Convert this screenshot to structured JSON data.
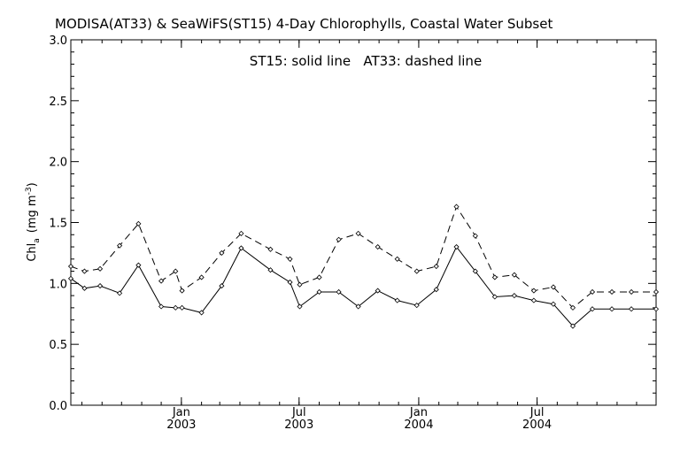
{
  "chart_data": {
    "type": "line",
    "title": "MODISA(AT33) & SeaWiFS(ST15) 4-Day Chlorophylls, Coastal Water Subset",
    "legend_text": "ST15: solid line   AT33: dashed line",
    "ylabel": "Chl",
    "ylabel_sub": "a",
    "ylabel_unit_open": "(mg m",
    "ylabel_unit_sup": "-3",
    "ylabel_unit_close": ")",
    "ylim": [
      0,
      3.0
    ],
    "yticks": [
      {
        "value": 0,
        "label": "0.0"
      },
      {
        "value": 0.5,
        "label": "0.5"
      },
      {
        "value": 1.0,
        "label": "1.0"
      },
      {
        "value": 1.5,
        "label": "1.5"
      },
      {
        "value": 2.0,
        "label": "2.0"
      },
      {
        "value": 2.5,
        "label": "2.5"
      },
      {
        "value": 3.0,
        "label": "3.0"
      }
    ],
    "xlim": [
      "2002-07-15",
      "2004-12-31"
    ],
    "xticks": [
      {
        "date": "2003-01-01",
        "line1": "Jan",
        "line2": "2003"
      },
      {
        "date": "2003-07-01",
        "line1": "Jul",
        "line2": "2003"
      },
      {
        "date": "2004-01-01",
        "line1": "Jan",
        "line2": "2004"
      },
      {
        "date": "2004-07-01",
        "line1": "Jul",
        "line2": "2004"
      }
    ],
    "x": [
      "2002-07-15",
      "2002-08-05",
      "2002-08-29",
      "2002-09-28",
      "2002-10-27",
      "2002-12-01",
      "2002-12-23",
      "2003-01-02",
      "2003-02-01",
      "2003-03-04",
      "2003-04-03",
      "2003-05-18",
      "2003-06-17",
      "2003-07-02",
      "2003-08-01",
      "2003-08-31",
      "2003-09-30",
      "2003-10-30",
      "2003-11-29",
      "2003-12-29",
      "2004-01-28",
      "2004-02-28",
      "2004-03-28",
      "2004-04-27",
      "2004-05-27",
      "2004-06-26",
      "2004-07-26",
      "2004-08-25",
      "2004-09-24",
      "2004-10-24",
      "2004-11-23",
      "2004-12-31"
    ],
    "series": [
      {
        "name": "ST15",
        "style": "solid",
        "values": [
          1.04,
          0.96,
          0.98,
          0.92,
          1.15,
          0.81,
          0.8,
          0.8,
          0.76,
          0.98,
          1.29,
          1.11,
          1.01,
          0.81,
          0.93,
          0.93,
          0.81,
          0.94,
          0.86,
          0.82,
          0.95,
          1.3,
          1.1,
          0.89,
          0.9,
          0.86,
          0.83,
          0.65,
          0.79,
          0.79,
          0.79,
          0.79
        ]
      },
      {
        "name": "AT33",
        "style": "dashed",
        "values": [
          1.14,
          1.1,
          1.12,
          1.31,
          1.49,
          1.02,
          1.1,
          0.94,
          1.05,
          1.25,
          1.41,
          1.28,
          1.2,
          0.99,
          1.05,
          1.36,
          1.41,
          1.3,
          1.2,
          1.1,
          1.14,
          1.63,
          1.39,
          1.05,
          1.07,
          0.94,
          0.97,
          0.8,
          0.93,
          0.93,
          0.93,
          0.93
        ]
      }
    ],
    "grid": false,
    "colors": {
      "line": "#000000",
      "background": "#ffffff"
    }
  }
}
